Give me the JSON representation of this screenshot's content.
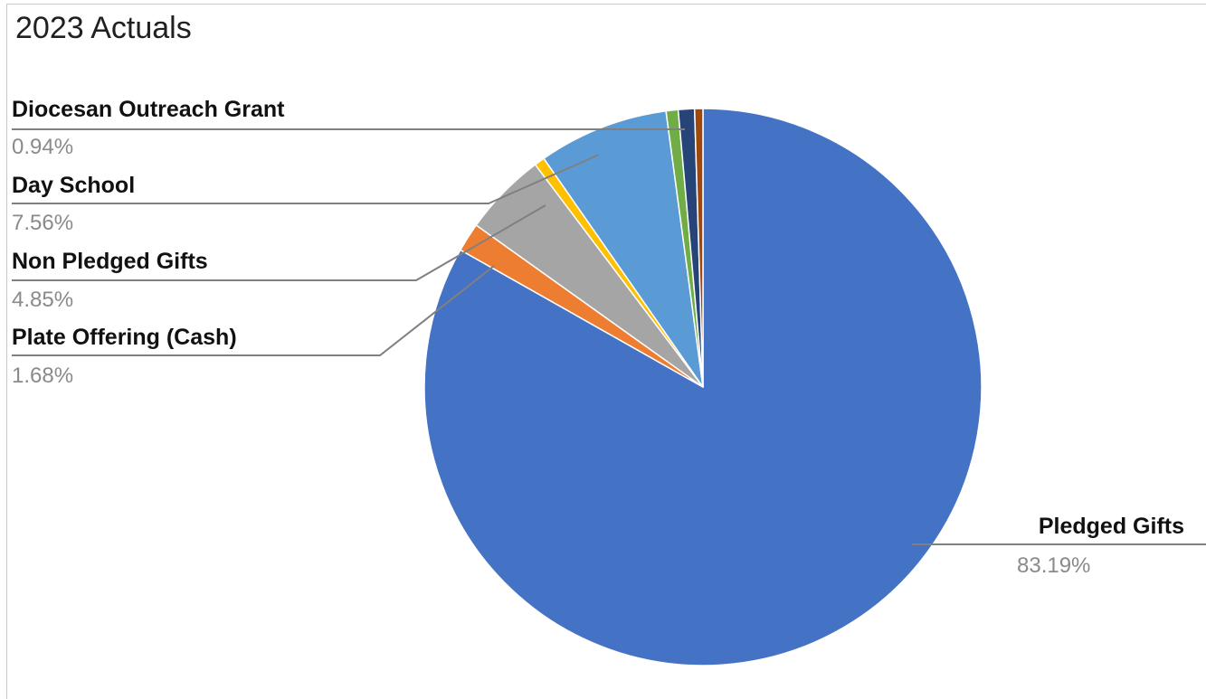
{
  "chart_data": {
    "type": "pie",
    "title": "2023 Actuals",
    "slices": [
      {
        "name": "Pledged Gifts",
        "percent": 83.19,
        "label": "83.19%",
        "color": "#4472C4",
        "labeled": true
      },
      {
        "name": "Plate Offering (Cash)",
        "percent": 1.68,
        "label": "1.68%",
        "color": "#ED7D31",
        "labeled": true
      },
      {
        "name": "Non Pledged Gifts",
        "percent": 4.85,
        "label": "4.85%",
        "color": "#A5A5A5",
        "labeled": true
      },
      {
        "name": "",
        "percent": 0.6,
        "label": "",
        "color": "#FFC000",
        "labeled": false
      },
      {
        "name": "Day School",
        "percent": 7.56,
        "label": "7.56%",
        "color": "#5B9BD5",
        "labeled": true
      },
      {
        "name": "",
        "percent": 0.7,
        "label": "",
        "color": "#70AD47",
        "labeled": false
      },
      {
        "name": "Diocesan Outreach Grant",
        "percent": 0.94,
        "label": "0.94%",
        "color": "#264478",
        "labeled": true
      },
      {
        "name": "",
        "percent": 0.48,
        "label": "",
        "color": "#9E480E",
        "labeled": false
      }
    ]
  }
}
